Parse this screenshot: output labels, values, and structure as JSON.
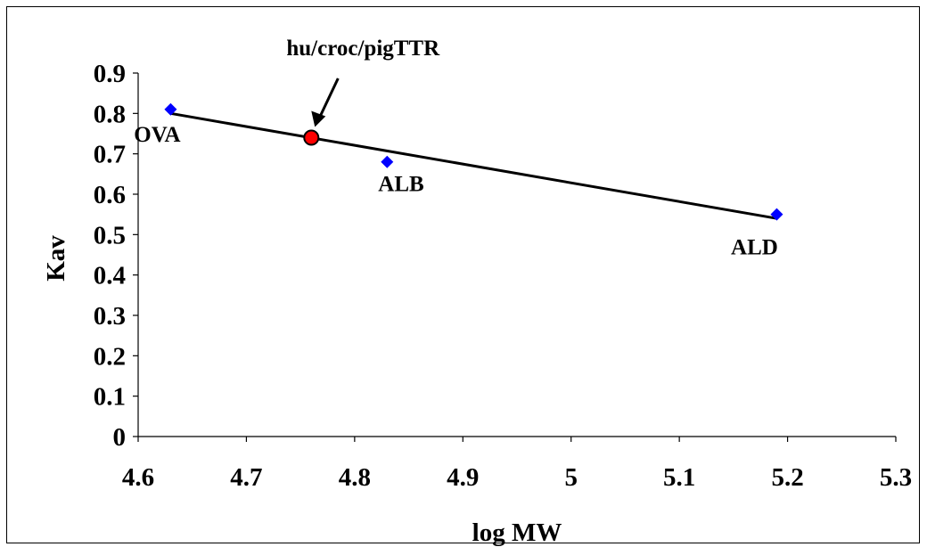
{
  "chart_data": {
    "type": "scatter",
    "title": "",
    "xlabel": "log MW",
    "ylabel": "Kav",
    "xlim": [
      4.6,
      5.3
    ],
    "ylim": [
      0,
      0.9
    ],
    "x_ticks": [
      "4.6",
      "4.7",
      "4.8",
      "4.9",
      "5",
      "5.1",
      "5.2",
      "5.3"
    ],
    "y_ticks": [
      "0",
      "0.1",
      "0.2",
      "0.3",
      "0.4",
      "0.5",
      "0.6",
      "0.7",
      "0.8",
      "0.9"
    ],
    "grid": false,
    "legend": "none",
    "standards": {
      "color": "#0000ff",
      "marker": "diamond",
      "points": [
        {
          "label": "OVA",
          "x": 4.63,
          "y": 0.81
        },
        {
          "label": "ALB",
          "x": 4.83,
          "y": 0.68
        },
        {
          "label": "ALD",
          "x": 5.19,
          "y": 0.55
        }
      ]
    },
    "fit_line": {
      "color": "#000000",
      "from": {
        "x": 4.63,
        "y": 0.8
      },
      "to": {
        "x": 5.19,
        "y": 0.54
      }
    },
    "sample": {
      "label": "hu/croc/pigTTR",
      "x": 4.76,
      "y": 0.74,
      "color": "#ff0000",
      "marker": "circle",
      "annotation": "arrow"
    }
  }
}
